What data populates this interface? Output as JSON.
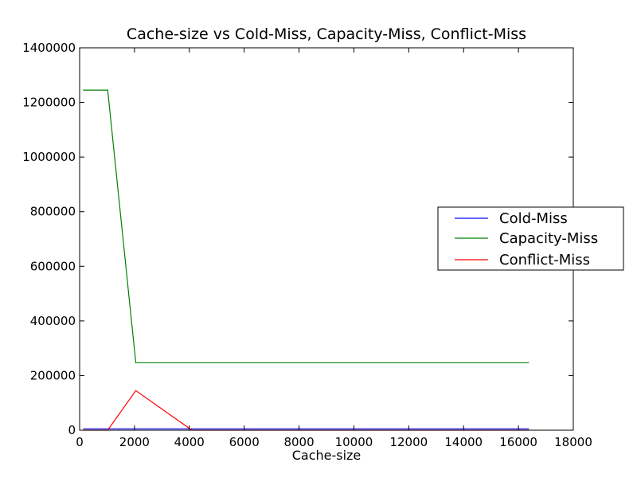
{
  "chart_data": {
    "type": "line",
    "title": "Cache-size vs Cold-Miss, Capacity-Miss, Conflict-Miss",
    "xlabel": "Cache-size",
    "ylabel": "",
    "xlim": [
      0,
      18000
    ],
    "ylim": [
      0,
      1400000
    ],
    "xticks": [
      0,
      2000,
      4000,
      6000,
      8000,
      10000,
      12000,
      14000,
      16000,
      18000
    ],
    "yticks": [
      0,
      200000,
      400000,
      600000,
      800000,
      1000000,
      1200000,
      1400000
    ],
    "x": [
      128,
      1024,
      2048,
      4096,
      8192,
      16384
    ],
    "grid": false,
    "legend_position": "right",
    "series": [
      {
        "name": "Cold-Miss",
        "color": "#0000ff",
        "values": [
          5000,
          5000,
          5000,
          5000,
          5000,
          5000
        ]
      },
      {
        "name": "Capacity-Miss",
        "color": "#008000",
        "values": [
          1245000,
          1245000,
          247000,
          247000,
          247000,
          247000
        ]
      },
      {
        "name": "Conflict-Miss",
        "color": "#ff0000",
        "values": [
          0,
          0,
          145000,
          0,
          0,
          0
        ]
      }
    ]
  }
}
